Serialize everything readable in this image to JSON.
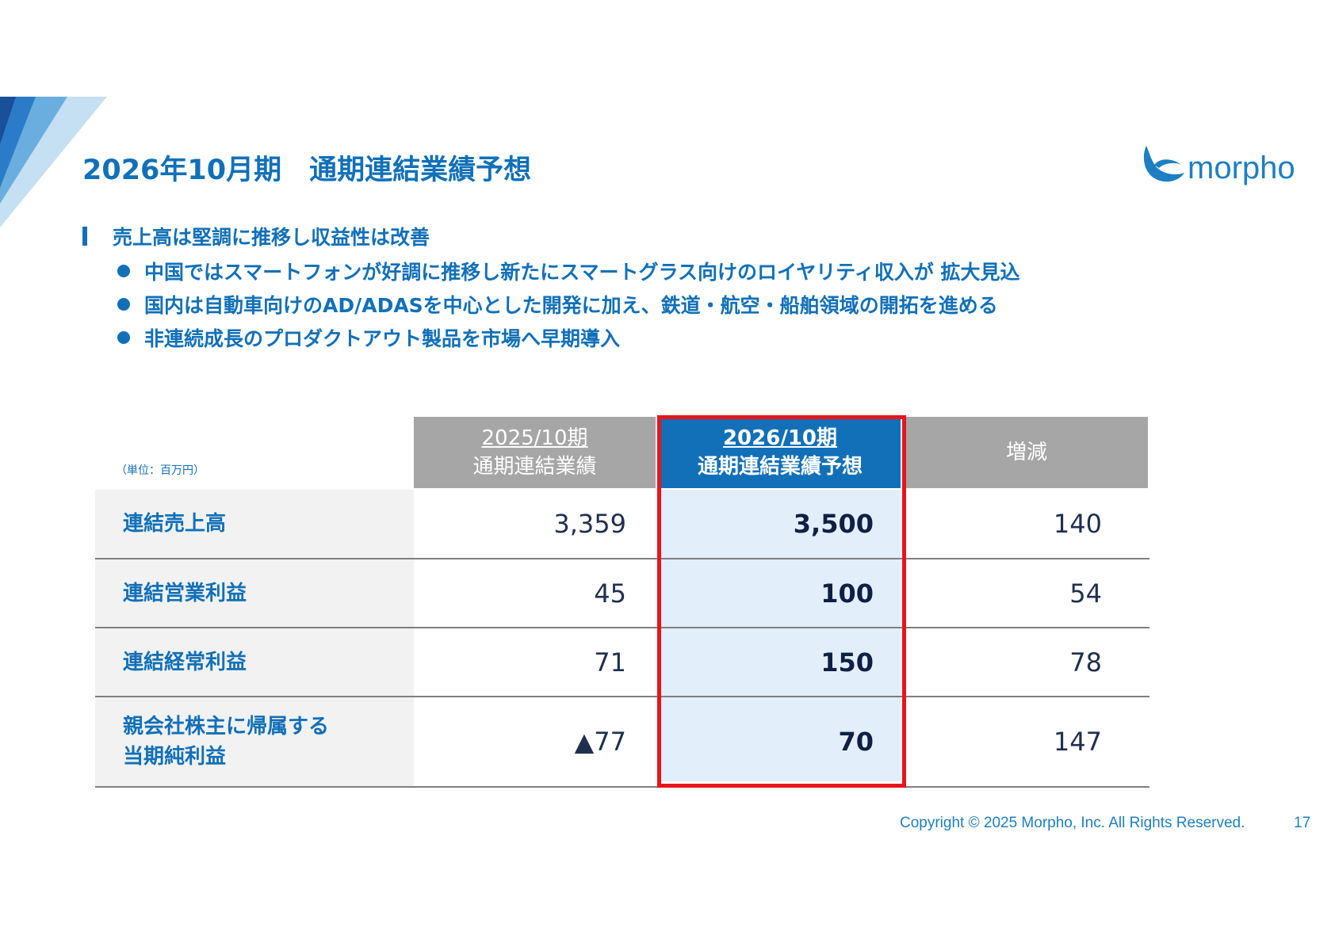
{
  "slide": {
    "title": "2026年10月期　通期連結業績予想",
    "heading": "売上高は堅調に推移し収益性は改善",
    "bullets": [
      "中国ではスマートフォンが好調に推移し新たにスマートグラス向けのロイヤリティ収入が 拡大見込",
      "国内は自動車向けのAD/ADASを中心とした開発に加え、鉄道・航空・船舶領域の開拓を進める",
      "非連続成長のプロダクトアウト製品を市場へ早期導入"
    ]
  },
  "logo": {
    "text": "morpho"
  },
  "table": {
    "unit_note": "（単位：百万円）",
    "headers": {
      "prev_year": "2025/10期",
      "prev_desc": "通期連結業績",
      "curr_year": "2026/10期",
      "curr_desc": "通期連結業績予想",
      "diff": "増減"
    },
    "rows": [
      {
        "label": "連結売上高",
        "prev": "3,359",
        "curr": "3,500",
        "diff": "140"
      },
      {
        "label": "連結営業利益",
        "prev": "45",
        "curr": "100",
        "diff": "54"
      },
      {
        "label": "連結経常利益",
        "prev": "71",
        "curr": "150",
        "diff": "78"
      },
      {
        "label": "親会社株主に帰属する\n当期純利益",
        "prev": "▲77",
        "curr": "70",
        "diff": "147"
      }
    ]
  },
  "footer": {
    "copyright": "Copyright © 2025 Morpho, Inc. All Rights Reserved.",
    "page": "17"
  },
  "colors": {
    "brand_blue": "#1170b8",
    "header_gray": "#a6a6a6",
    "highlight_red": "#e8141b",
    "forecast_bg": "#e2eef9"
  }
}
